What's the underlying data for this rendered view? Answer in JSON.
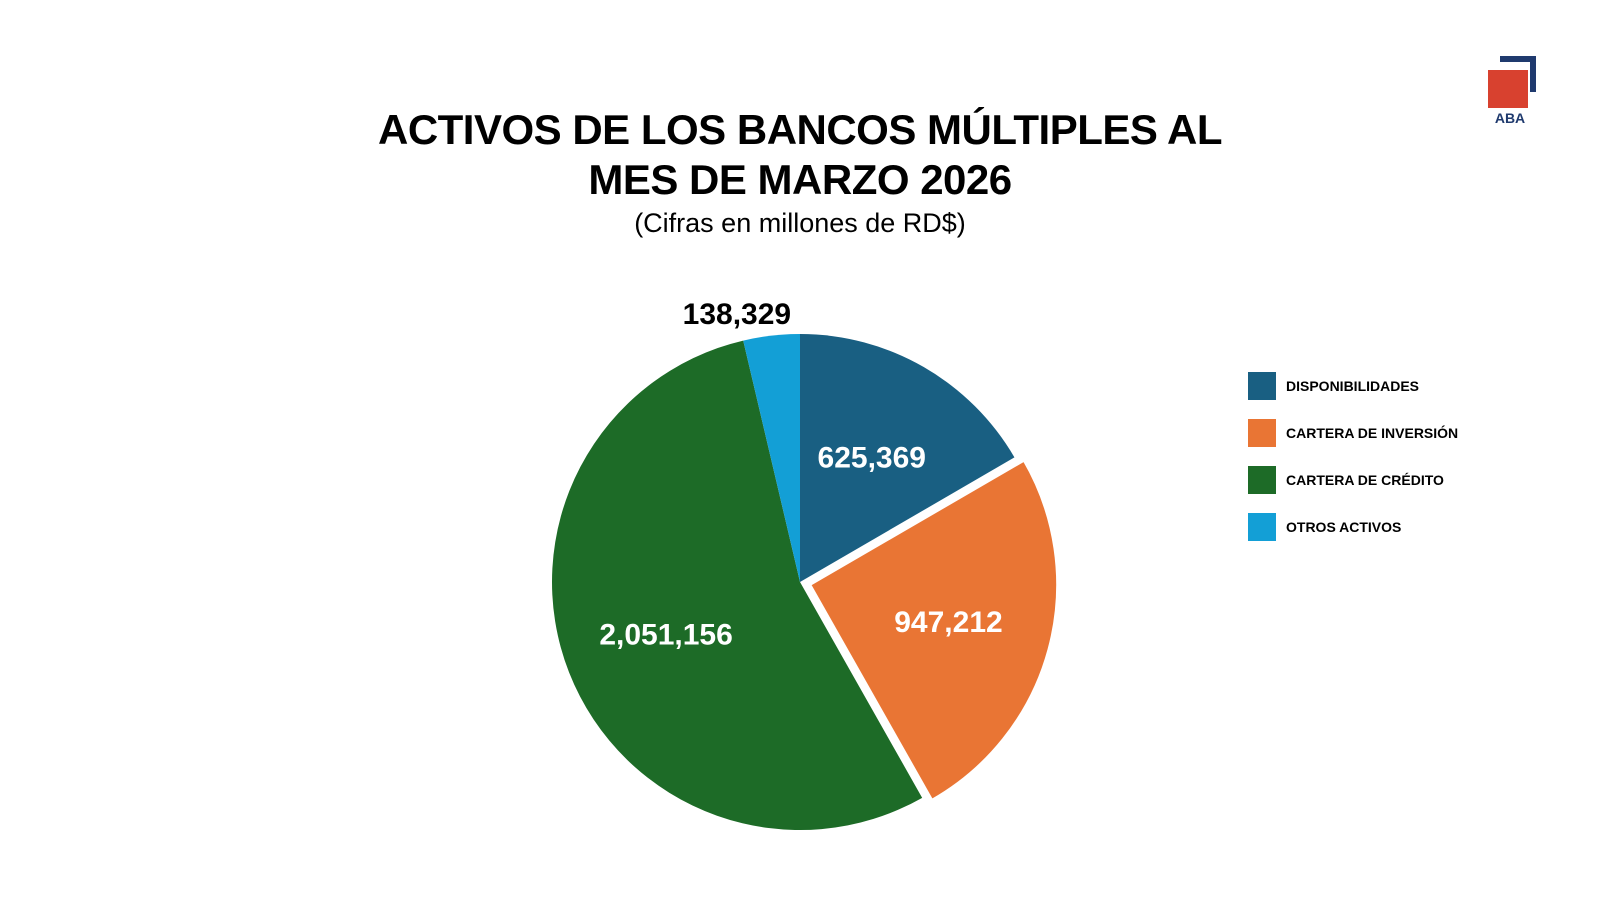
{
  "title_line1": "ACTIVOS DE LOS BANCOS MÚLTIPLES AL",
  "title_line2": "MES DE MARZO 2026",
  "subtitle": "(Cifras en millones de RD$)",
  "logo_text": "ABA",
  "colors": {
    "logo_red": "#d8412f",
    "logo_navy": "#1f3a6e"
  },
  "chart_data": {
    "type": "pie",
    "title": "ACTIVOS DE LOS BANCOS MÚLTIPLES AL MES DE MARZO 2026",
    "subtitle": "(Cifras en millones de RD$)",
    "legend_position": "right",
    "start": "top",
    "direction": "clockwise",
    "slices": [
      {
        "label": "DISPONIBILIDADES",
        "value": 625369,
        "display": "625,369",
        "color": "#195f82",
        "exploded": false,
        "label_placement": "inside"
      },
      {
        "label": "CARTERA DE INVERSIÓN",
        "value": 947212,
        "display": "947,212",
        "color": "#e97534",
        "exploded": true,
        "label_placement": "inside"
      },
      {
        "label": "CARTERA DE CRÉDITO",
        "value": 2051156,
        "display": "2,051,156",
        "color": "#1d6b27",
        "exploded": false,
        "label_placement": "inside"
      },
      {
        "label": "OTROS ACTIVOS",
        "value": 138329,
        "display": "138,329",
        "color": "#139fd6",
        "exploded": false,
        "label_placement": "outside"
      }
    ]
  }
}
